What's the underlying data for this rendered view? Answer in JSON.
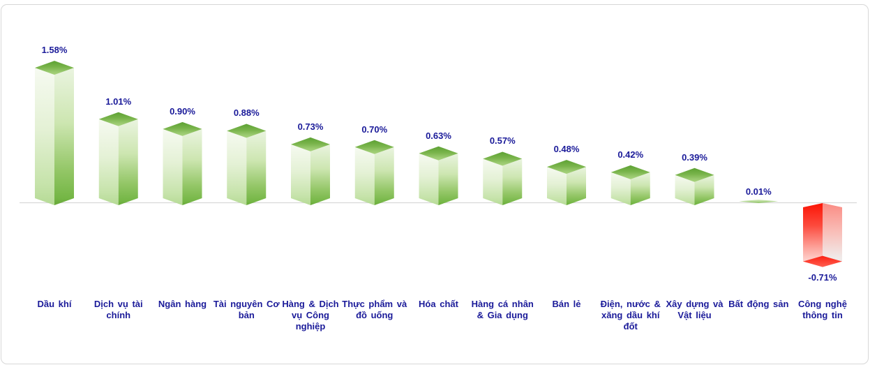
{
  "chart_data": {
    "type": "bar",
    "style": "3d-column",
    "title": "",
    "xlabel": "",
    "ylabel": "",
    "unit": "%",
    "grid": false,
    "legend": false,
    "baseline": 0,
    "ylim": [
      -0.9,
      1.7
    ],
    "categories": [
      "Dầu khí",
      "Dịch vụ tài chính",
      "Ngân hàng",
      "Tài nguyên Cơ bản",
      "Hàng & Dịch vụ Công nghiệp",
      "Thực phẩm và đồ uống",
      "Hóa chất",
      "Hàng cá nhân & Gia dụng",
      "Bán lẻ",
      "Điện, nước & xăng dầu khí đốt",
      "Xây dựng và Vật liệu",
      "Bất động sản",
      "Công nghệ thông tin"
    ],
    "category_lines": [
      "Dầu khí",
      "Dịch vụ tài\nchính",
      "Ngân hàng",
      "Tài nguyên Cơ\nbản",
      "Hàng & Dịch\nvụ Công\nnghiệp",
      "Thực phẩm và\nđồ uống",
      "Hóa chất",
      "Hàng cá nhân\n& Gia dụng",
      "Bán lẻ",
      "Điện, nước &\nxăng dầu khí\nđốt",
      "Xây dựng và\nVật liệu",
      "Bất động sản",
      "Công nghệ\nthông tin"
    ],
    "values": [
      1.58,
      1.01,
      0.9,
      0.88,
      0.73,
      0.7,
      0.63,
      0.57,
      0.48,
      0.42,
      0.39,
      0.01,
      -0.71
    ],
    "value_labels": [
      "1.58%",
      "1.01%",
      "0.90%",
      "0.88%",
      "0.73%",
      "0.70%",
      "0.63%",
      "0.57%",
      "0.48%",
      "0.42%",
      "0.39%",
      "0.01%",
      "-0.71%"
    ],
    "colors": {
      "positive_bar": "#76b645",
      "positive_bar_light": "#e9f3df",
      "positive_top": "#5da133",
      "negative_bar": "#fb1507",
      "negative_bar_light": "#f9beb8",
      "label_text": "#1a1a99",
      "axis_line": "#d8d8d8",
      "frame_border": "#d7d7d7",
      "background": "#ffffff"
    }
  }
}
